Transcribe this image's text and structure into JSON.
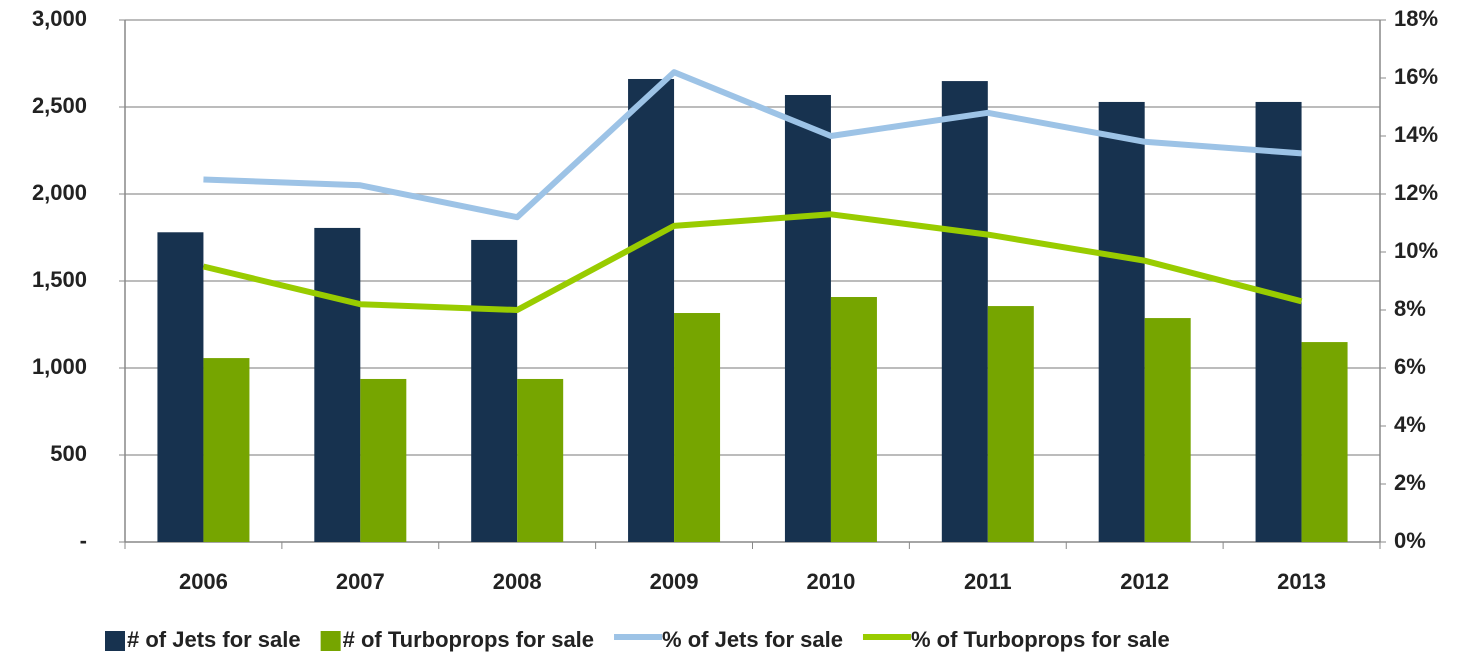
{
  "chart_data": {
    "type": "bar_line",
    "categories": [
      "2006",
      "2007",
      "2008",
      "2009",
      "2010",
      "2011",
      "2012",
      "2013"
    ],
    "series": [
      {
        "name": "# of Jets for sale",
        "type": "bar",
        "color": "#17324f",
        "values": [
          1780,
          1805,
          1736,
          2661,
          2569,
          2649,
          2529,
          2529
        ]
      },
      {
        "name": "# of Turboprops for sale",
        "type": "bar",
        "color": "#76a500",
        "values": [
          1057,
          937,
          937,
          1316,
          1408,
          1356,
          1287,
          1149
        ]
      },
      {
        "name": "% of Jets for sale",
        "type": "line",
        "axis": "y2",
        "color": "#9dc3e6",
        "values": [
          12.5,
          12.3,
          11.2,
          16.2,
          14.0,
          14.8,
          13.8,
          13.4
        ]
      },
      {
        "name": "% of Turboprops for sale",
        "type": "line",
        "axis": "y2",
        "color": "#99cc00",
        "values": [
          9.5,
          8.2,
          8.0,
          10.9,
          11.3,
          10.6,
          9.7,
          8.3
        ]
      }
    ],
    "ylim": [
      0,
      3000
    ],
    "yticks": [
      {
        "value": 0,
        "label": "-"
      },
      500,
      {
        "value": 1000,
        "label": "1,000"
      },
      {
        "value": 1500,
        "label": "1,500"
      },
      {
        "value": 2000,
        "label": "2,000"
      },
      {
        "value": 2500,
        "label": "2,500"
      },
      {
        "value": 3000,
        "label": "3,000"
      }
    ],
    "y2lim": [
      0,
      18
    ],
    "y2ticks": [
      {
        "value": 0,
        "label": "0%"
      },
      {
        "value": 2,
        "label": "2%"
      },
      {
        "value": 4,
        "label": "4%"
      },
      {
        "value": 6,
        "label": "6%"
      },
      {
        "value": 8,
        "label": "8%"
      },
      {
        "value": 10,
        "label": "10%"
      },
      {
        "value": 12,
        "label": "12%"
      },
      {
        "value": 14,
        "label": "14%"
      },
      {
        "value": 16,
        "label": "16%"
      },
      {
        "value": 18,
        "label": "18%"
      }
    ],
    "grid": true,
    "legend": "bottom"
  }
}
